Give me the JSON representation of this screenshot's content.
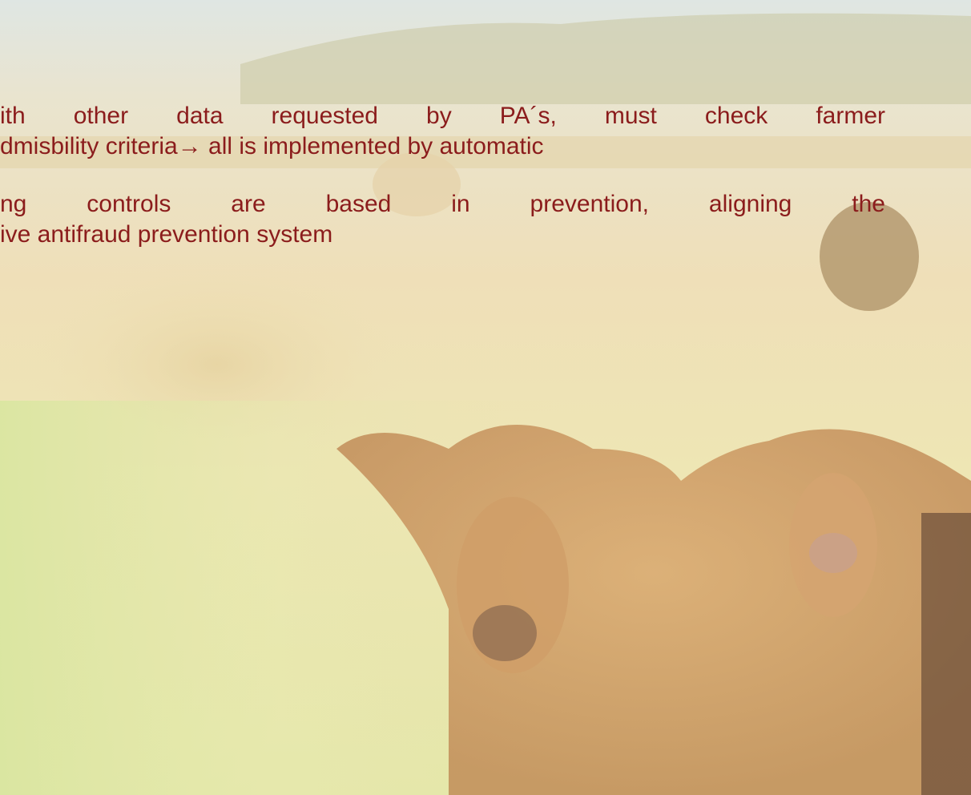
{
  "paragraphs": [
    {
      "lines": [
        "ith other data requested by PA´s, must check farmer",
        "dmisbility criteria→ all is implemented by automatic"
      ]
    },
    {
      "lines": [
        "ng controls are based in prevention, aligning the",
        "ive antifraud prevention system"
      ]
    }
  ]
}
